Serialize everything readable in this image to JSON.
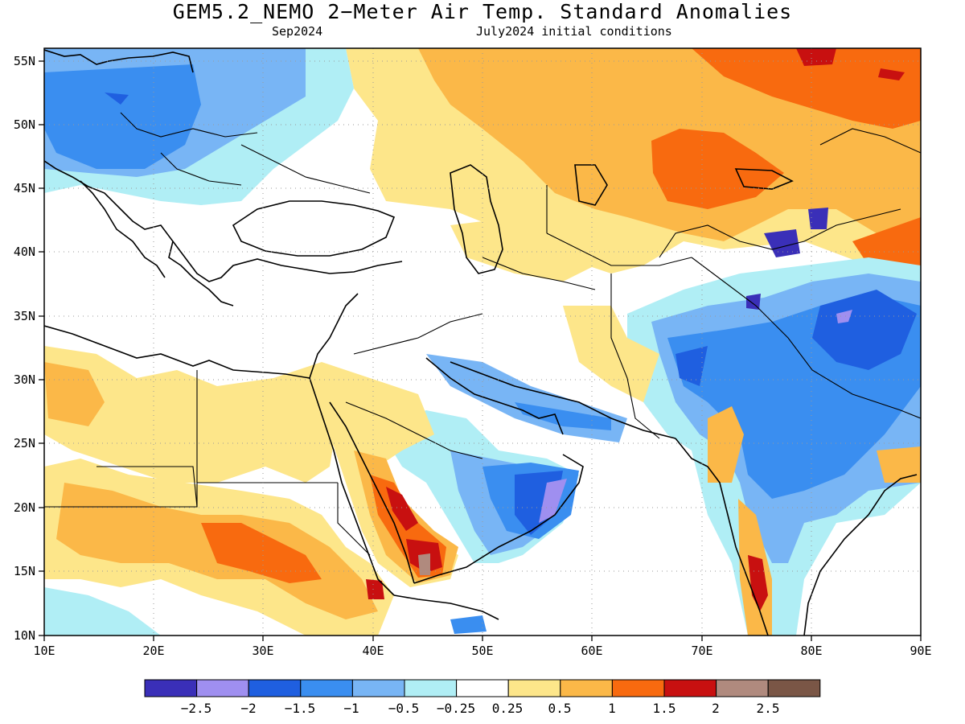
{
  "title": "GEM5.2_NEMO 2−Meter Air Temp. Standard Anomalies",
  "subtitle_left": "Sep2024",
  "subtitle_right": "July2024 initial conditions",
  "lat_labels": [
    "55N",
    "50N",
    "45N",
    "40N",
    "35N",
    "30N",
    "25N",
    "20N",
    "15N",
    "10N"
  ],
  "lat_values": [
    55,
    50,
    45,
    40,
    35,
    30,
    25,
    20,
    15,
    10
  ],
  "lon_labels": [
    "10E",
    "20E",
    "30E",
    "40E",
    "50E",
    "60E",
    "70E",
    "80E",
    "90E"
  ],
  "lon_values": [
    10,
    20,
    30,
    40,
    50,
    60,
    70,
    80,
    90
  ],
  "legend": {
    "colors": [
      "#3a2fb8",
      "#9f8ff0",
      "#1f5fe0",
      "#3a8ef0",
      "#78b5f5",
      "#b0eef5",
      "#ffffff",
      "#fde68a",
      "#fbb848",
      "#f86a0f",
      "#c81010",
      "#b08a7e",
      "#7a5646"
    ],
    "labels": [
      "−2.5",
      "−2",
      "−1.5",
      "−1",
      "−0.5",
      "−0.25",
      "0.25",
      "0.5",
      "1",
      "1.5",
      "2",
      "2.5"
    ]
  },
  "map_extent": {
    "lon_min": 10,
    "lon_max": 90,
    "lat_min": 10,
    "lat_max": 56
  },
  "anomaly_regions": [
    {
      "name": "central-europe-cold",
      "level": "-1",
      "color": "#3a8ef0"
    },
    {
      "name": "kazakhstan-warm",
      "level": "1.5",
      "color": "#f86a0f"
    },
    {
      "name": "siberia-warm",
      "level": "1",
      "color": "#fbb848"
    },
    {
      "name": "india-cold",
      "level": "-1",
      "color": "#3a8ef0"
    },
    {
      "name": "yemen-warm",
      "level": "2",
      "color": "#c81010"
    },
    {
      "name": "oman-cold",
      "level": "-1.5",
      "color": "#1f5fe0"
    },
    {
      "name": "sudan-warm",
      "level": "1.5",
      "color": "#f86a0f"
    }
  ]
}
